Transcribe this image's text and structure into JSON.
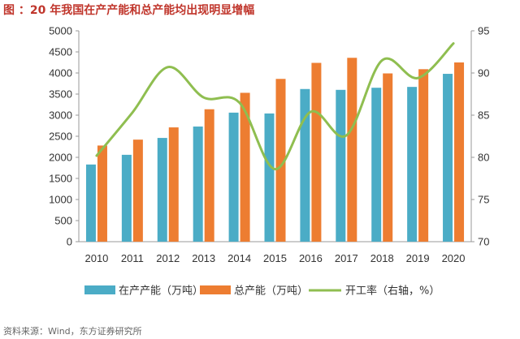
{
  "title": "图 ：20 年我国在产产能和总产能均出现明显增幅",
  "source": "资料来源：Wind，东方证券研究所",
  "chart_data": {
    "type": "bar",
    "categories": [
      "2010",
      "2011",
      "2012",
      "2013",
      "2014",
      "2015",
      "2016",
      "2017",
      "2018",
      "2019",
      "2020"
    ],
    "series": [
      {
        "name": "在产产能（万吨）",
        "type": "bar",
        "axis": "left",
        "color": "#4bacc6",
        "values": [
          1830,
          2060,
          2460,
          2730,
          3060,
          3040,
          3620,
          3600,
          3650,
          3670,
          3980
        ]
      },
      {
        "name": "总产能（万吨）",
        "type": "bar",
        "axis": "left",
        "color": "#ed7d31",
        "values": [
          2280,
          2420,
          2710,
          3140,
          3530,
          3860,
          4240,
          4360,
          3990,
          4090,
          4250
        ]
      },
      {
        "name": "开工率（右轴，%）",
        "type": "line",
        "axis": "right",
        "color": "#8fbe50",
        "values": [
          80.2,
          85.3,
          90.7,
          87.1,
          86.5,
          78.6,
          85.4,
          82.6,
          91.5,
          89.4,
          93.5
        ]
      }
    ],
    "y_left": {
      "min": 0,
      "max": 5000,
      "ticks": [
        "0",
        "500",
        "1000",
        "1500",
        "2000",
        "2500",
        "3000",
        "3500",
        "4000",
        "4500",
        "5000"
      ]
    },
    "y_right": {
      "min": 70,
      "max": 95,
      "ticks": [
        "70",
        "75",
        "80",
        "85",
        "90",
        "95"
      ]
    },
    "grid": false,
    "legend": "bottom"
  }
}
